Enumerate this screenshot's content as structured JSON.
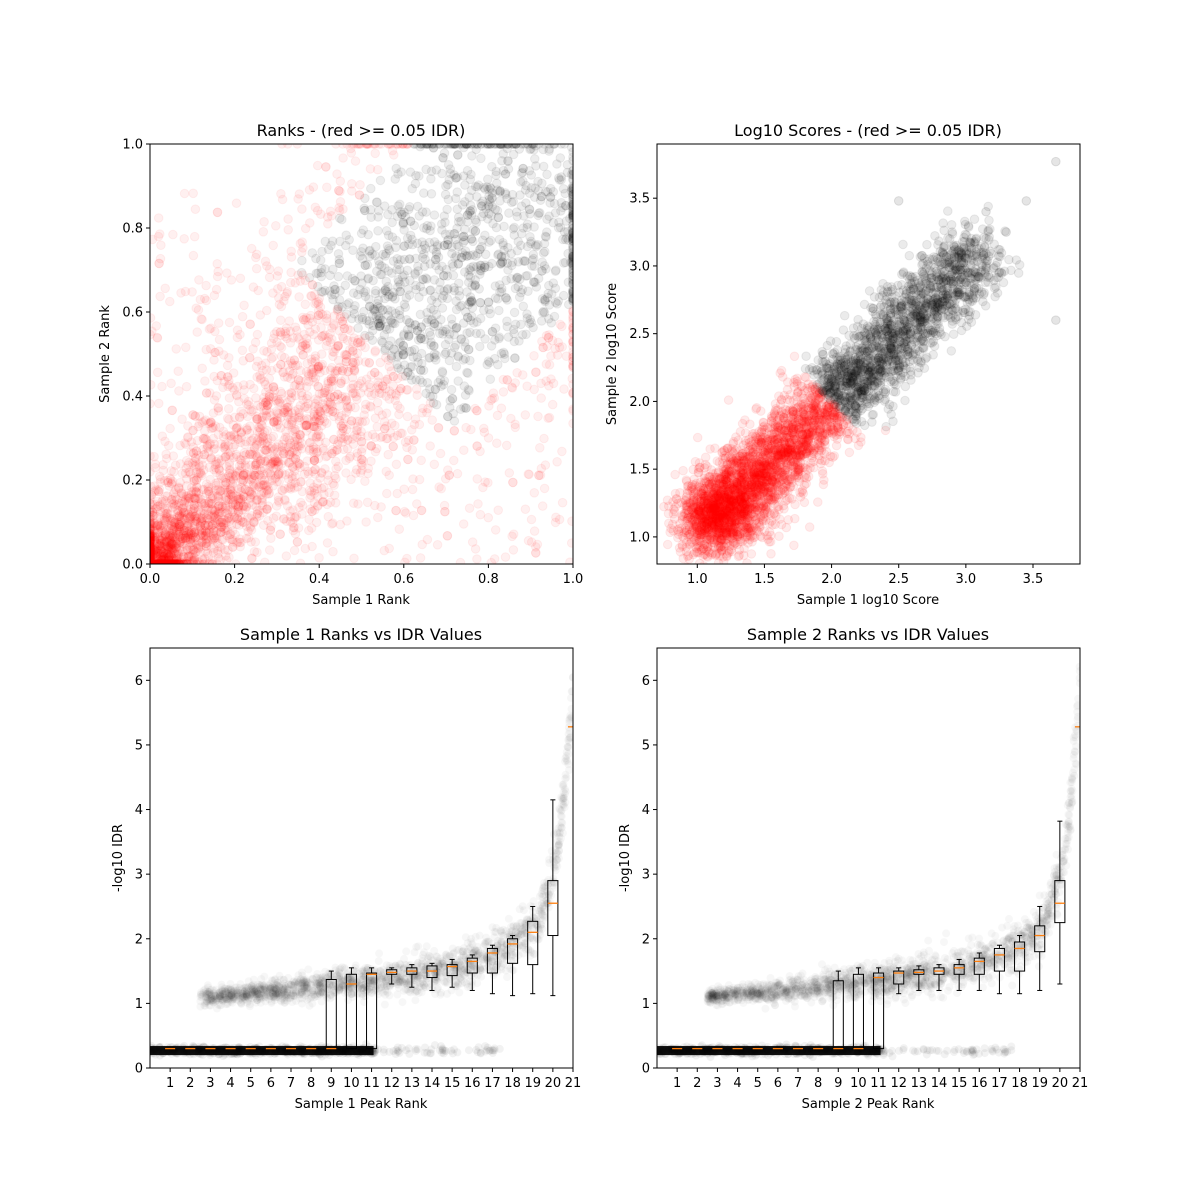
{
  "chart_data": [
    {
      "type": "scatter",
      "title": "Ranks - (red >= 0.05 IDR)",
      "xlabel": "Sample 1 Rank",
      "ylabel": "Sample 2 Rank",
      "xlim": [
        0,
        1
      ],
      "ylim": [
        0,
        1
      ],
      "xticks": [
        "0.0",
        "0.2",
        "0.4",
        "0.6",
        "0.8",
        "1.0"
      ],
      "yticks": [
        "0.0",
        "0.2",
        "0.4",
        "0.6",
        "0.8",
        "1.0"
      ],
      "series": [
        {
          "color": "#ff0000",
          "alpha": 0.06,
          "marker": "circle"
        },
        {
          "color": "#000000",
          "alpha": 0.07,
          "marker": "circle"
        }
      ]
    },
    {
      "type": "scatter",
      "title": "Log10 Scores - (red >= 0.05 IDR)",
      "xlabel": "Sample 1 log10 Score",
      "ylabel": "Sample 2 log10 Score",
      "xlim": [
        0.7,
        3.85
      ],
      "ylim": [
        0.8,
        3.9
      ],
      "xticks": [
        "1.0",
        "1.5",
        "2.0",
        "2.5",
        "3.0",
        "3.5"
      ],
      "yticks": [
        "1.0",
        "1.5",
        "2.0",
        "2.5",
        "3.0",
        "3.5"
      ],
      "series": [
        {
          "color": "#ff0000",
          "alpha": 0.08,
          "marker": "circle"
        },
        {
          "color": "#000000",
          "alpha": 0.08,
          "marker": "circle"
        }
      ]
    },
    {
      "type": "box",
      "title": "Sample 1 Ranks vs IDR Values",
      "xlabel": "Sample 1 Peak Rank",
      "ylabel": "-log10 IDR",
      "xlim": [
        0,
        21
      ],
      "ylim": [
        0,
        6.5
      ],
      "xticks": [
        "1",
        "2",
        "3",
        "4",
        "5",
        "6",
        "7",
        "8",
        "9",
        "10",
        "11",
        "12",
        "13",
        "14",
        "15",
        "16",
        "17",
        "18",
        "19",
        "20",
        "21"
      ],
      "yticks": [
        "0",
        "1",
        "2",
        "3",
        "4",
        "5",
        "6"
      ],
      "boxes": [
        {
          "pos": 1,
          "wl": 0.3,
          "q1": 0.3,
          "med": 0.3,
          "q3": 0.3,
          "wh": 0.3
        },
        {
          "pos": 2,
          "wl": 0.3,
          "q1": 0.3,
          "med": 0.3,
          "q3": 0.3,
          "wh": 0.3
        },
        {
          "pos": 3,
          "wl": 0.3,
          "q1": 0.3,
          "med": 0.3,
          "q3": 0.3,
          "wh": 0.3
        },
        {
          "pos": 4,
          "wl": 0.3,
          "q1": 0.3,
          "med": 0.3,
          "q3": 0.3,
          "wh": 0.3
        },
        {
          "pos": 5,
          "wl": 0.3,
          "q1": 0.3,
          "med": 0.3,
          "q3": 0.3,
          "wh": 0.3
        },
        {
          "pos": 6,
          "wl": 0.3,
          "q1": 0.3,
          "med": 0.3,
          "q3": 0.3,
          "wh": 0.3
        },
        {
          "pos": 7,
          "wl": 0.3,
          "q1": 0.3,
          "med": 0.3,
          "q3": 0.3,
          "wh": 0.3
        },
        {
          "pos": 8,
          "wl": 0.3,
          "q1": 0.3,
          "med": 0.3,
          "q3": 0.3,
          "wh": 0.3
        },
        {
          "pos": 9,
          "wl": 0.3,
          "q1": 0.3,
          "med": 0.3,
          "q3": 1.37,
          "wh": 1.5
        },
        {
          "pos": 10,
          "wl": 0.3,
          "q1": 0.3,
          "med": 1.3,
          "q3": 1.45,
          "wh": 1.55
        },
        {
          "pos": 11,
          "wl": 0.3,
          "q1": 0.3,
          "med": 1.45,
          "q3": 1.47,
          "wh": 1.55
        },
        {
          "pos": 12,
          "wl": 1.3,
          "q1": 1.45,
          "med": 1.48,
          "q3": 1.52,
          "wh": 1.55
        },
        {
          "pos": 13,
          "wl": 1.25,
          "q1": 1.45,
          "med": 1.5,
          "q3": 1.55,
          "wh": 1.6
        },
        {
          "pos": 14,
          "wl": 1.2,
          "q1": 1.4,
          "med": 1.5,
          "q3": 1.58,
          "wh": 1.62
        },
        {
          "pos": 15,
          "wl": 1.25,
          "q1": 1.43,
          "med": 1.57,
          "q3": 1.6,
          "wh": 1.68
        },
        {
          "pos": 16,
          "wl": 1.2,
          "q1": 1.47,
          "med": 1.65,
          "q3": 1.7,
          "wh": 1.75
        },
        {
          "pos": 17,
          "wl": 1.15,
          "q1": 1.47,
          "med": 1.78,
          "q3": 1.85,
          "wh": 1.9
        },
        {
          "pos": 18,
          "wl": 1.12,
          "q1": 1.62,
          "med": 1.92,
          "q3": 2.0,
          "wh": 2.05
        },
        {
          "pos": 19,
          "wl": 1.15,
          "q1": 1.6,
          "med": 2.1,
          "q3": 2.27,
          "wh": 2.5
        },
        {
          "pos": 20,
          "wl": 1.12,
          "q1": 2.05,
          "med": 2.55,
          "q3": 2.9,
          "wh": 4.15
        },
        {
          "pos": 21,
          "wl": 5.28,
          "q1": 5.28,
          "med": 5.28,
          "q3": 5.28,
          "wh": 5.28
        }
      ]
    },
    {
      "type": "box",
      "title": "Sample 2 Ranks vs IDR Values",
      "xlabel": "Sample 2 Peak Rank",
      "ylabel": "-log10 IDR",
      "xlim": [
        0,
        21
      ],
      "ylim": [
        0,
        6.5
      ],
      "xticks": [
        "1",
        "2",
        "3",
        "4",
        "5",
        "6",
        "7",
        "8",
        "9",
        "10",
        "11",
        "12",
        "13",
        "14",
        "15",
        "16",
        "17",
        "18",
        "19",
        "20",
        "21"
      ],
      "yticks": [
        "0",
        "1",
        "2",
        "3",
        "4",
        "5",
        "6"
      ],
      "boxes": [
        {
          "pos": 1,
          "wl": 0.3,
          "q1": 0.3,
          "med": 0.3,
          "q3": 0.3,
          "wh": 0.3
        },
        {
          "pos": 2,
          "wl": 0.3,
          "q1": 0.3,
          "med": 0.3,
          "q3": 0.3,
          "wh": 0.3
        },
        {
          "pos": 3,
          "wl": 0.3,
          "q1": 0.3,
          "med": 0.3,
          "q3": 0.3,
          "wh": 0.3
        },
        {
          "pos": 4,
          "wl": 0.3,
          "q1": 0.3,
          "med": 0.3,
          "q3": 0.3,
          "wh": 0.3
        },
        {
          "pos": 5,
          "wl": 0.3,
          "q1": 0.3,
          "med": 0.3,
          "q3": 0.3,
          "wh": 0.3
        },
        {
          "pos": 6,
          "wl": 0.3,
          "q1": 0.3,
          "med": 0.3,
          "q3": 0.3,
          "wh": 0.3
        },
        {
          "pos": 7,
          "wl": 0.3,
          "q1": 0.3,
          "med": 0.3,
          "q3": 0.3,
          "wh": 0.3
        },
        {
          "pos": 8,
          "wl": 0.3,
          "q1": 0.3,
          "med": 0.3,
          "q3": 0.3,
          "wh": 0.3
        },
        {
          "pos": 9,
          "wl": 0.3,
          "q1": 0.3,
          "med": 0.3,
          "q3": 1.35,
          "wh": 1.5
        },
        {
          "pos": 10,
          "wl": 0.3,
          "q1": 0.3,
          "med": 0.3,
          "q3": 1.45,
          "wh": 1.55
        },
        {
          "pos": 11,
          "wl": 0.3,
          "q1": 0.3,
          "med": 1.4,
          "q3": 1.47,
          "wh": 1.55
        },
        {
          "pos": 12,
          "wl": 1.15,
          "q1": 1.3,
          "med": 1.47,
          "q3": 1.5,
          "wh": 1.55
        },
        {
          "pos": 13,
          "wl": 1.2,
          "q1": 1.45,
          "med": 1.48,
          "q3": 1.52,
          "wh": 1.58
        },
        {
          "pos": 14,
          "wl": 1.2,
          "q1": 1.45,
          "med": 1.5,
          "q3": 1.55,
          "wh": 1.6
        },
        {
          "pos": 15,
          "wl": 1.2,
          "q1": 1.45,
          "med": 1.55,
          "q3": 1.6,
          "wh": 1.68
        },
        {
          "pos": 16,
          "wl": 1.2,
          "q1": 1.45,
          "med": 1.65,
          "q3": 1.7,
          "wh": 1.78
        },
        {
          "pos": 17,
          "wl": 1.15,
          "q1": 1.5,
          "med": 1.75,
          "q3": 1.85,
          "wh": 1.9
        },
        {
          "pos": 18,
          "wl": 1.15,
          "q1": 1.5,
          "med": 1.85,
          "q3": 1.95,
          "wh": 2.05
        },
        {
          "pos": 19,
          "wl": 1.2,
          "q1": 1.8,
          "med": 2.05,
          "q3": 2.2,
          "wh": 2.5
        },
        {
          "pos": 20,
          "wl": 1.3,
          "q1": 2.25,
          "med": 2.55,
          "q3": 2.9,
          "wh": 3.82
        },
        {
          "pos": 21,
          "wl": 5.28,
          "q1": 5.28,
          "med": 5.28,
          "q3": 5.28,
          "wh": 5.28
        }
      ]
    }
  ]
}
